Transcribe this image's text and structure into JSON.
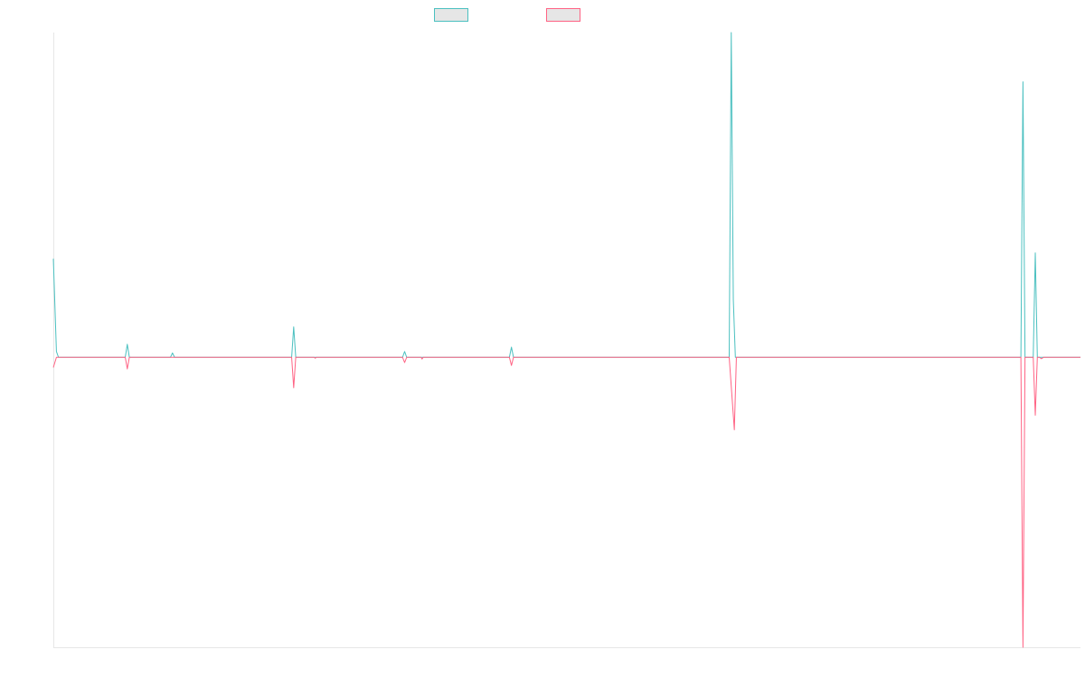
{
  "chart_data": {
    "type": "line",
    "title": "",
    "xlabel": "",
    "ylabel": "",
    "grid": false,
    "legend_placement": "top-center",
    "xlim": [
      0,
      1000
    ],
    "ylim": [
      -1,
      1.12
    ],
    "series": [
      {
        "name": "",
        "color": "#4bc0c0",
        "points": [
          [
            0,
            0.34
          ],
          [
            3,
            0.02
          ],
          [
            5,
            0.0
          ],
          [
            70,
            0.0
          ],
          [
            72,
            0.045
          ],
          [
            74,
            0.0
          ],
          [
            114,
            0.0
          ],
          [
            116,
            0.015
          ],
          [
            118,
            0.0
          ],
          [
            232,
            0.0
          ],
          [
            234,
            0.105
          ],
          [
            236,
            0.0
          ],
          [
            340,
            0.0
          ],
          [
            342,
            0.02
          ],
          [
            344,
            0.0
          ],
          [
            444,
            0.0
          ],
          [
            446,
            0.035
          ],
          [
            448,
            0.0
          ],
          [
            658,
            0.0
          ],
          [
            660,
            1.12
          ],
          [
            662,
            0.2
          ],
          [
            664,
            0.0
          ],
          [
            942,
            0.0
          ],
          [
            944,
            0.95
          ],
          [
            946,
            0.0
          ],
          [
            954,
            0.0
          ],
          [
            956,
            0.36
          ],
          [
            958,
            0.0
          ],
          [
            960,
            0.0
          ],
          [
            1000,
            0.0
          ]
        ]
      },
      {
        "name": "",
        "color": "#ff6384",
        "points": [
          [
            0,
            -0.035
          ],
          [
            3,
            0.0
          ],
          [
            70,
            0.0
          ],
          [
            72,
            -0.04
          ],
          [
            74,
            0.0
          ],
          [
            232,
            0.0
          ],
          [
            234,
            -0.105
          ],
          [
            236,
            0.0
          ],
          [
            254,
            0.0
          ],
          [
            255,
            -0.003
          ],
          [
            256,
            0.0
          ],
          [
            340,
            0.0
          ],
          [
            342,
            -0.018
          ],
          [
            344,
            0.0
          ],
          [
            358,
            0.0
          ],
          [
            359,
            -0.006
          ],
          [
            360,
            0.0
          ],
          [
            444,
            0.0
          ],
          [
            446,
            -0.028
          ],
          [
            448,
            0.0
          ],
          [
            658,
            0.0
          ],
          [
            663,
            -0.25
          ],
          [
            665,
            0.0
          ],
          [
            942,
            0.0
          ],
          [
            944,
            -1.0
          ],
          [
            946,
            0.0
          ],
          [
            954,
            0.0
          ],
          [
            956,
            -0.2
          ],
          [
            958,
            0.0
          ],
          [
            960,
            0.0
          ],
          [
            962,
            -0.005
          ],
          [
            964,
            0.0
          ],
          [
            1000,
            0.0
          ]
        ]
      }
    ]
  }
}
